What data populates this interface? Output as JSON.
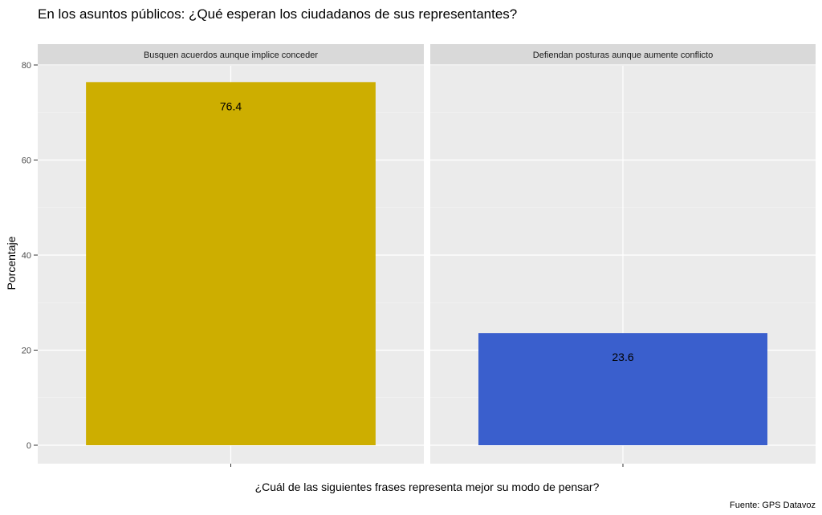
{
  "chart_data": {
    "type": "bar",
    "title": "En los asuntos públicos: ¿Qué esperan los ciudadanos de sus representantes?",
    "xlabel": "¿Cuál de las siguientes frases representa mejor su modo de pensar?",
    "ylabel": "Porcentaje",
    "caption": "Fuente: GPS Datavoz",
    "ylim": [
      0,
      80
    ],
    "yticks": [
      0,
      20,
      40,
      60,
      80
    ],
    "grid": true,
    "facets": [
      {
        "label": "Busquen acuerdos aunque implice conceder",
        "value": 76.4,
        "value_label": "76.4",
        "color": "#CDAE00"
      },
      {
        "label": "Defiendan posturas aunque aumente conflicto",
        "value": 23.6,
        "value_label": "23.6",
        "color": "#3A5FCD"
      }
    ]
  },
  "colors": {
    "panel_background": "#EBEBEB",
    "strip_background": "#D9D9D9",
    "grid_major": "#FFFFFF"
  }
}
